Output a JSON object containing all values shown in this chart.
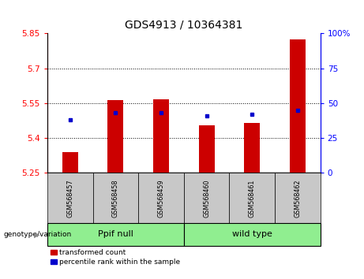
{
  "title": "GDS4913 / 10364381",
  "samples": [
    "GSM568457",
    "GSM568458",
    "GSM568459",
    "GSM568460",
    "GSM568461",
    "GSM568462"
  ],
  "red_values": [
    5.34,
    5.565,
    5.568,
    5.455,
    5.465,
    5.825
  ],
  "blue_values": [
    38,
    43,
    43,
    41,
    42,
    45
  ],
  "baseline": 5.25,
  "ylim_left": [
    5.25,
    5.85
  ],
  "ylim_right": [
    0,
    100
  ],
  "yticks_left": [
    5.25,
    5.4,
    5.55,
    5.7,
    5.85
  ],
  "yticks_right": [
    0,
    25,
    50,
    75,
    100
  ],
  "ytick_labels_left": [
    "5.25",
    "5.4",
    "5.55",
    "5.7",
    "5.85"
  ],
  "ytick_labels_right": [
    "0",
    "25",
    "50",
    "75",
    "100%"
  ],
  "hlines": [
    5.4,
    5.55,
    5.7
  ],
  "groups": [
    {
      "label": "Ppif null",
      "indices": [
        0,
        1,
        2
      ],
      "color": "#90EE90"
    },
    {
      "label": "wild type",
      "indices": [
        3,
        4,
        5
      ],
      "color": "#90EE90"
    }
  ],
  "group_label_prefix": "genotype/variation",
  "bar_color": "#CC0000",
  "dot_color": "#0000CC",
  "legend_red": "transformed count",
  "legend_blue": "percentile rank within the sample",
  "plot_bg": "#FFFFFF",
  "tick_bg": "#C8C8C8",
  "bar_width": 0.35,
  "title_fontsize": 10,
  "tick_fontsize": 7.5
}
